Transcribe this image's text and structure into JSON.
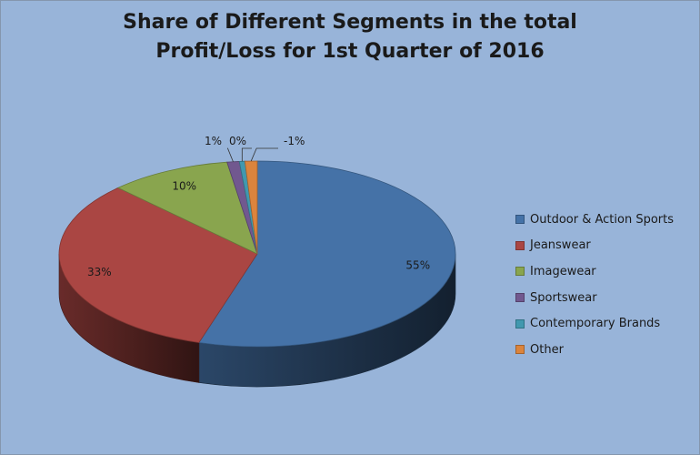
{
  "chart_data": {
    "type": "pie",
    "title_lines": [
      "Share of Different Segments in the total",
      "Profit/Loss for 1st Quarter of 2016"
    ],
    "categories": [
      "Outdoor & Action Sports",
      "Jeanswear",
      "Imagewear",
      "Sportswear",
      "Contemporary Brands",
      "Other"
    ],
    "values": [
      55,
      33,
      10,
      1,
      0,
      -1
    ],
    "data_labels": [
      "55%",
      "33%",
      "10%",
      "1%",
      "0%",
      "-1%"
    ],
    "colors": [
      "#4572a7",
      "#aa4643",
      "#89a54e",
      "#71588f",
      "#4198af",
      "#db843d"
    ],
    "legend_position": "right",
    "style": "3d-pie"
  }
}
